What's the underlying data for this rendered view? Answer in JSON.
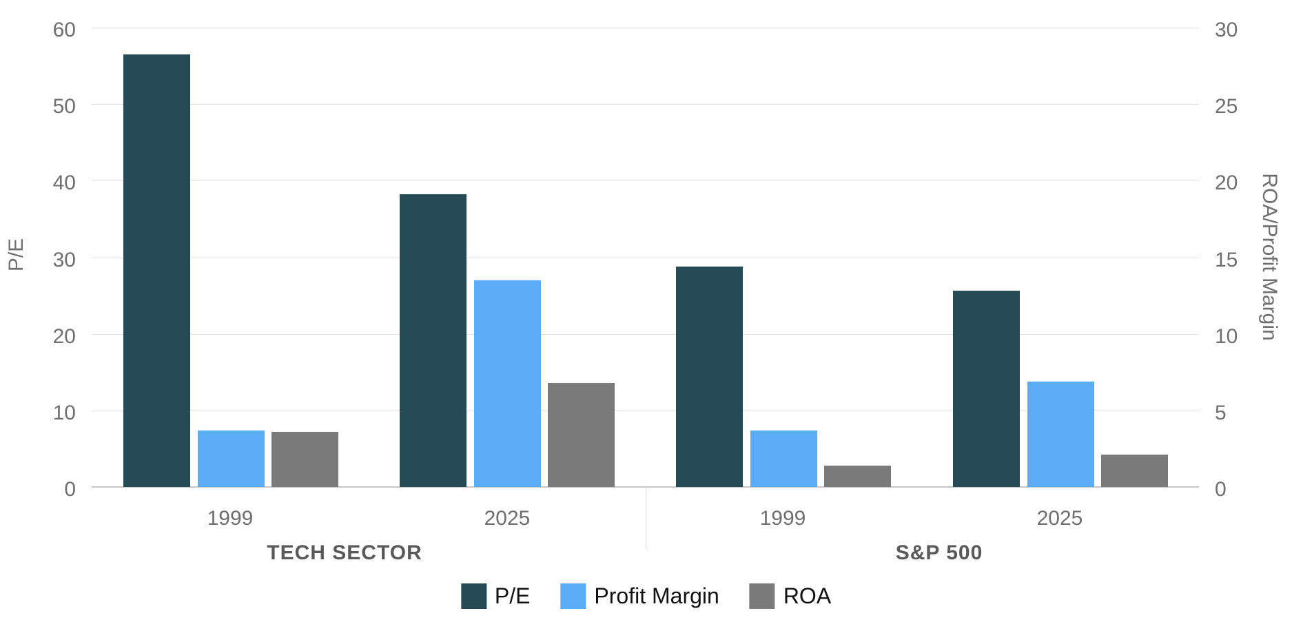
{
  "chart_data": {
    "type": "bar",
    "title": "",
    "left_axis": {
      "label": "P/E",
      "min": 0,
      "max": 60,
      "ticks": [
        60,
        50,
        40,
        30,
        20,
        10,
        0
      ]
    },
    "right_axis": {
      "label": "ROA/Profit Margin",
      "min": 0,
      "max": 30,
      "ticks": [
        30,
        25,
        20,
        15,
        10,
        5,
        0
      ]
    },
    "categories": [
      "1999",
      "2025",
      "1999",
      "2025"
    ],
    "sections": [
      {
        "label": "TECH SECTOR",
        "categories": [
          "1999",
          "2025"
        ]
      },
      {
        "label": "S&P 500",
        "categories": [
          "1999",
          "2025"
        ]
      }
    ],
    "series": [
      {
        "name": "P/E",
        "axis": "left",
        "color": "#254b57",
        "values": [
          56.5,
          38.2,
          28.8,
          25.6
        ]
      },
      {
        "name": "Profit Margin",
        "axis": "right",
        "color": "#5aacf7",
        "values": [
          3.7,
          13.5,
          3.7,
          6.9
        ]
      },
      {
        "name": "ROA",
        "axis": "right",
        "color": "#7a7a7a",
        "values": [
          3.6,
          6.8,
          1.4,
          2.1
        ]
      }
    ],
    "legend": {
      "position": "bottom",
      "entries": [
        "P/E",
        "Profit Margin",
        "ROA"
      ]
    },
    "grid": "horizontal"
  },
  "colors": {
    "background": "#ffffff",
    "gridline": "#e2e2e2",
    "baseline": "#c7c7c7",
    "axis_text": "#6f6f6f",
    "sector_text": "#595959",
    "legend_text": "#121212"
  }
}
